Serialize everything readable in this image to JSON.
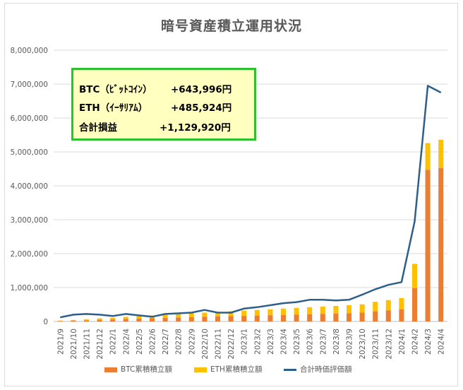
{
  "chart_data": {
    "type": "bar",
    "title": "暗号資産積立運用状況",
    "categories": [
      "2021/9",
      "2021/10",
      "2021/11",
      "2021/12",
      "2022/1",
      "2022/4",
      "2022/5",
      "2022/6",
      "2022/7",
      "2022/8",
      "2022/9",
      "2022/10",
      "2022/11",
      "2022/12",
      "2023/1",
      "2023/2",
      "2023/3",
      "2023/4",
      "2023/5",
      "2023/6",
      "2023/7",
      "2023/8",
      "2023/9",
      "2023/10",
      "2023/11",
      "2023/12",
      "2024/1",
      "2024/2",
      "2024/3",
      "2024/4"
    ],
    "series": [
      {
        "name": "BTC累積積立額",
        "type": "bar-stacked",
        "color": "#ed7d31",
        "values": [
          15000,
          25000,
          35000,
          50000,
          60000,
          75000,
          85000,
          95000,
          110000,
          120000,
          130000,
          140000,
          150000,
          160000,
          165000,
          175000,
          185000,
          195000,
          205000,
          215000,
          225000,
          235000,
          245000,
          260000,
          300000,
          330000,
          360000,
          980000,
          4470000,
          4520000
        ]
      },
      {
        "name": "ETH累積積立額",
        "type": "bar-stacked",
        "color": "#ffc000",
        "values": [
          10000,
          20000,
          30000,
          40000,
          50000,
          60000,
          70000,
          80000,
          90000,
          100000,
          110000,
          120000,
          130000,
          140000,
          155000,
          165000,
          175000,
          185000,
          195000,
          205000,
          215000,
          225000,
          235000,
          245000,
          280000,
          300000,
          330000,
          720000,
          790000,
          840000
        ]
      },
      {
        "name": "合計時価評価額",
        "type": "line",
        "color": "#2e5f8a",
        "values": [
          120000,
          200000,
          220000,
          200000,
          160000,
          220000,
          180000,
          140000,
          220000,
          240000,
          260000,
          340000,
          260000,
          260000,
          380000,
          420000,
          480000,
          540000,
          570000,
          640000,
          640000,
          620000,
          640000,
          790000,
          950000,
          1080000,
          1160000,
          2950000,
          6950000,
          6750000
        ]
      }
    ],
    "ylim": [
      0,
      8000000
    ],
    "yticks": [
      0,
      1000000,
      2000000,
      3000000,
      4000000,
      5000000,
      6000000,
      7000000,
      8000000
    ],
    "ytick_labels": [
      "0",
      "1,000,000",
      "2,000,000",
      "3,000,000",
      "4,000,000",
      "5,000,000",
      "6,000,000",
      "7,000,000",
      "8,000,000"
    ],
    "grid": true,
    "legend_position": "bottom",
    "summary": [
      {
        "label": "BTC（ﾋﾞｯﾄｺｲﾝ）",
        "value": "+643,996円"
      },
      {
        "label": "ETH（ｲｰｻﾘｱﾑ）",
        "value": "+485,924円"
      },
      {
        "label": "合計損益",
        "value": "+1,129,920円"
      }
    ]
  }
}
